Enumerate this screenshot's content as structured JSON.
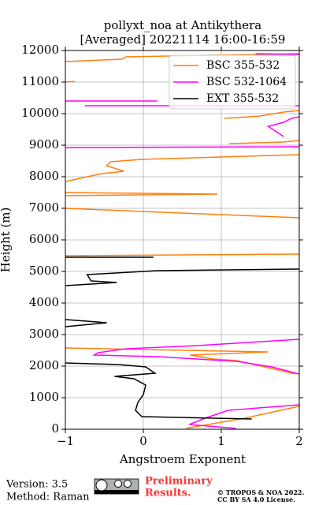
{
  "chart_data": {
    "type": "profile",
    "title": "pollyxt_noa at Antikythera",
    "subtitle": "[Averaged] 20221114 16:00-16:59",
    "xlabel": "Angstroem Exponent",
    "ylabel": "Height (m)",
    "xlim": [
      -1,
      2
    ],
    "ylim": [
      0,
      12000
    ],
    "xticks": [
      {
        "value": -1,
        "label": "−1"
      },
      0,
      1,
      2
    ],
    "yticks": [
      0,
      1000,
      2000,
      3000,
      4000,
      5000,
      6000,
      7000,
      8000,
      9000,
      10000,
      11000,
      12000
    ],
    "grid": true,
    "legend": "upper right",
    "series": [
      {
        "name": "BSC 355-532",
        "color": "#ff7f0e",
        "y": [
          30,
          350,
          730,
          1100,
          null,
          1750,
          1950,
          2175,
          2225,
          2350,
          2450,
          2575,
          null,
          5500,
          5550,
          null,
          6700,
          7000,
          null,
          7400,
          7450,
          7500,
          null,
          7850,
          8100,
          8175,
          8350,
          8475,
          8550,
          8700,
          null,
          9050,
          9100,
          9150,
          null,
          9850,
          9925,
          10050,
          10100,
          null,
          11000,
          11020,
          null,
          11650,
          11725,
          11800,
          11900
        ],
        "values": [
          0.55,
          1.3,
          2.0,
          2.4,
          null,
          1.95,
          1.6,
          1.2,
          0.9,
          0.6,
          1.6,
          -1.0,
          null,
          -1.0,
          2.0,
          null,
          2.0,
          -1.0,
          null,
          -1.0,
          0.95,
          -1.0,
          null,
          -1.0,
          -0.53,
          -0.25,
          -0.47,
          -0.42,
          -0.02,
          2.0,
          null,
          1.1,
          1.8,
          2.0,
          null,
          1.04,
          1.5,
          1.8,
          2.0,
          null,
          -1.0,
          -0.88,
          null,
          -1.0,
          -0.27,
          -0.22,
          2.0
        ]
      },
      {
        "name": "BSC 532-1064",
        "color": "#ff00ff",
        "y": [
          25,
          150,
          350,
          600,
          775,
          null,
          1750,
          1975,
          2150,
          2300,
          2350,
          2425,
          2550,
          2650,
          2850,
          null,
          8925,
          8950,
          null,
          9275,
          9600,
          9725,
          9850,
          9900,
          null,
          10250,
          10250,
          null,
          10400,
          10400,
          null,
          11900,
          11875
        ],
        "values": [
          1.19,
          0.59,
          0.79,
          1.09,
          2.0,
          null,
          2.0,
          1.65,
          1.2,
          0.18,
          -0.63,
          -0.58,
          -0.22,
          0.69,
          2.0,
          null,
          -1.0,
          2.0,
          null,
          1.8,
          1.6,
          1.8,
          1.9,
          2.0,
          null,
          -0.75,
          2.0,
          null,
          -1.0,
          0.18,
          null,
          1.44,
          2.0
        ]
      },
      {
        "name": "EXT 355-532",
        "color": "#000000",
        "y": [
          325,
          400,
          600,
          850,
          1100,
          1400,
          1600,
          1675,
          1775,
          1975,
          2050,
          2100,
          null,
          3250,
          3375,
          3475,
          null,
          4550,
          4650,
          4700,
          4900,
          5025,
          5075,
          null,
          5450,
          5450
        ],
        "values": [
          1.39,
          -0.02,
          -0.1,
          -0.07,
          0.0,
          0.03,
          -0.12,
          -0.37,
          0.15,
          0.03,
          -0.32,
          -1.0,
          null,
          -1.0,
          -0.47,
          -1.0,
          null,
          -1.0,
          -0.34,
          -0.67,
          -0.72,
          0.18,
          2.0,
          null,
          -1.0,
          0.13
        ]
      }
    ]
  },
  "footer": {
    "version": "Version: 3.5",
    "method": "Method: Raman",
    "preliminary": "Preliminary",
    "results": "Results.",
    "copyright": "© TROPOS & NOA 2022.",
    "license": "CC BY SA 4.0 License."
  }
}
